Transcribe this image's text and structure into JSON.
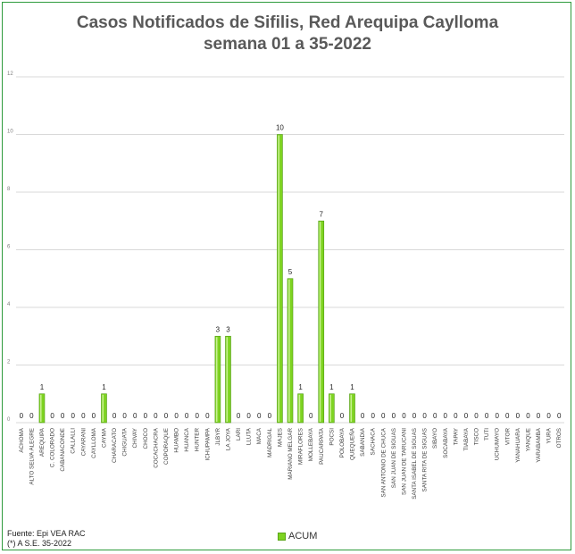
{
  "chart_data": {
    "type": "bar",
    "title_line1": "Casos Notificados de Sifilis, Red Arequipa Caylloma",
    "title_line2": "semana 01 a 35-2022",
    "categories": [
      "ACHOMA",
      "ALTO SELVA ALEGRE",
      "AREQUIPA",
      "C. COLORADO",
      "CABANACONDE",
      "CALLALLI",
      "CAYARANI",
      "CAYLLOMA",
      "CAYMA",
      "CHARACATO",
      "CHIGUATA",
      "CHIVAY",
      "CHOCO",
      "COCACHACRA",
      "COPORAQUE",
      "HUAMBO",
      "HUANCA",
      "HUNTER",
      "ICHUPAMPA",
      "JLBYR",
      "LA JOYA",
      "LARI",
      "LLUTA",
      "MACA",
      "MADRIGAL",
      "MAJES",
      "MARIANO MELGAR",
      "MIRAFLORES",
      "MOLLEBAYA",
      "PAUCARPATA",
      "POCSI",
      "POLOBAYA",
      "QUEQUEÑA",
      "SABANDIA",
      "SACHACA",
      "SAN ANTONIO DE CHUCA",
      "SAN JUAN DE SIGUAS",
      "SAN JUAN DE TARUCANI",
      "SANTA ISABEL DE SIGUAS",
      "SANTA RITA DE SIGUAS",
      "SIBAYO",
      "SOCABAYA",
      "TAPAY",
      "TIABAYA",
      "TISCO",
      "TUTI",
      "UCHUMAYO",
      "VITOR",
      "YANAHUARA",
      "YANQUE",
      "YARABAMBA",
      "YURA",
      "OTROS"
    ],
    "series": [
      {
        "name": "ACUM",
        "values": [
          0,
          0,
          1,
          0,
          0,
          0,
          0,
          0,
          1,
          0,
          0,
          0,
          0,
          0,
          0,
          0,
          0,
          0,
          0,
          3,
          3,
          0,
          0,
          0,
          0,
          10,
          5,
          1,
          0,
          7,
          1,
          0,
          1,
          0,
          0,
          0,
          0,
          0,
          0,
          0,
          0,
          0,
          0,
          0,
          0,
          0,
          0,
          0,
          0,
          0,
          0,
          0,
          0
        ]
      }
    ],
    "yticks": [
      "0",
      "2",
      "4",
      "6",
      "8",
      "10",
      "12"
    ],
    "ylim": [
      0,
      12
    ],
    "grid": true,
    "legend_position": "bottom",
    "colors": {
      "bar": "#7ed321",
      "bar_dark": "#4f9a12",
      "bar_light": "#c6f08f",
      "grid": "#d9d9d9",
      "frame": "#2e9b3c"
    }
  },
  "footer": {
    "source_line1": "Fuente: Epi VEA RAC",
    "source_line2": "(*) A S.E. 35-2022"
  },
  "legend": {
    "label": "ACUM"
  }
}
